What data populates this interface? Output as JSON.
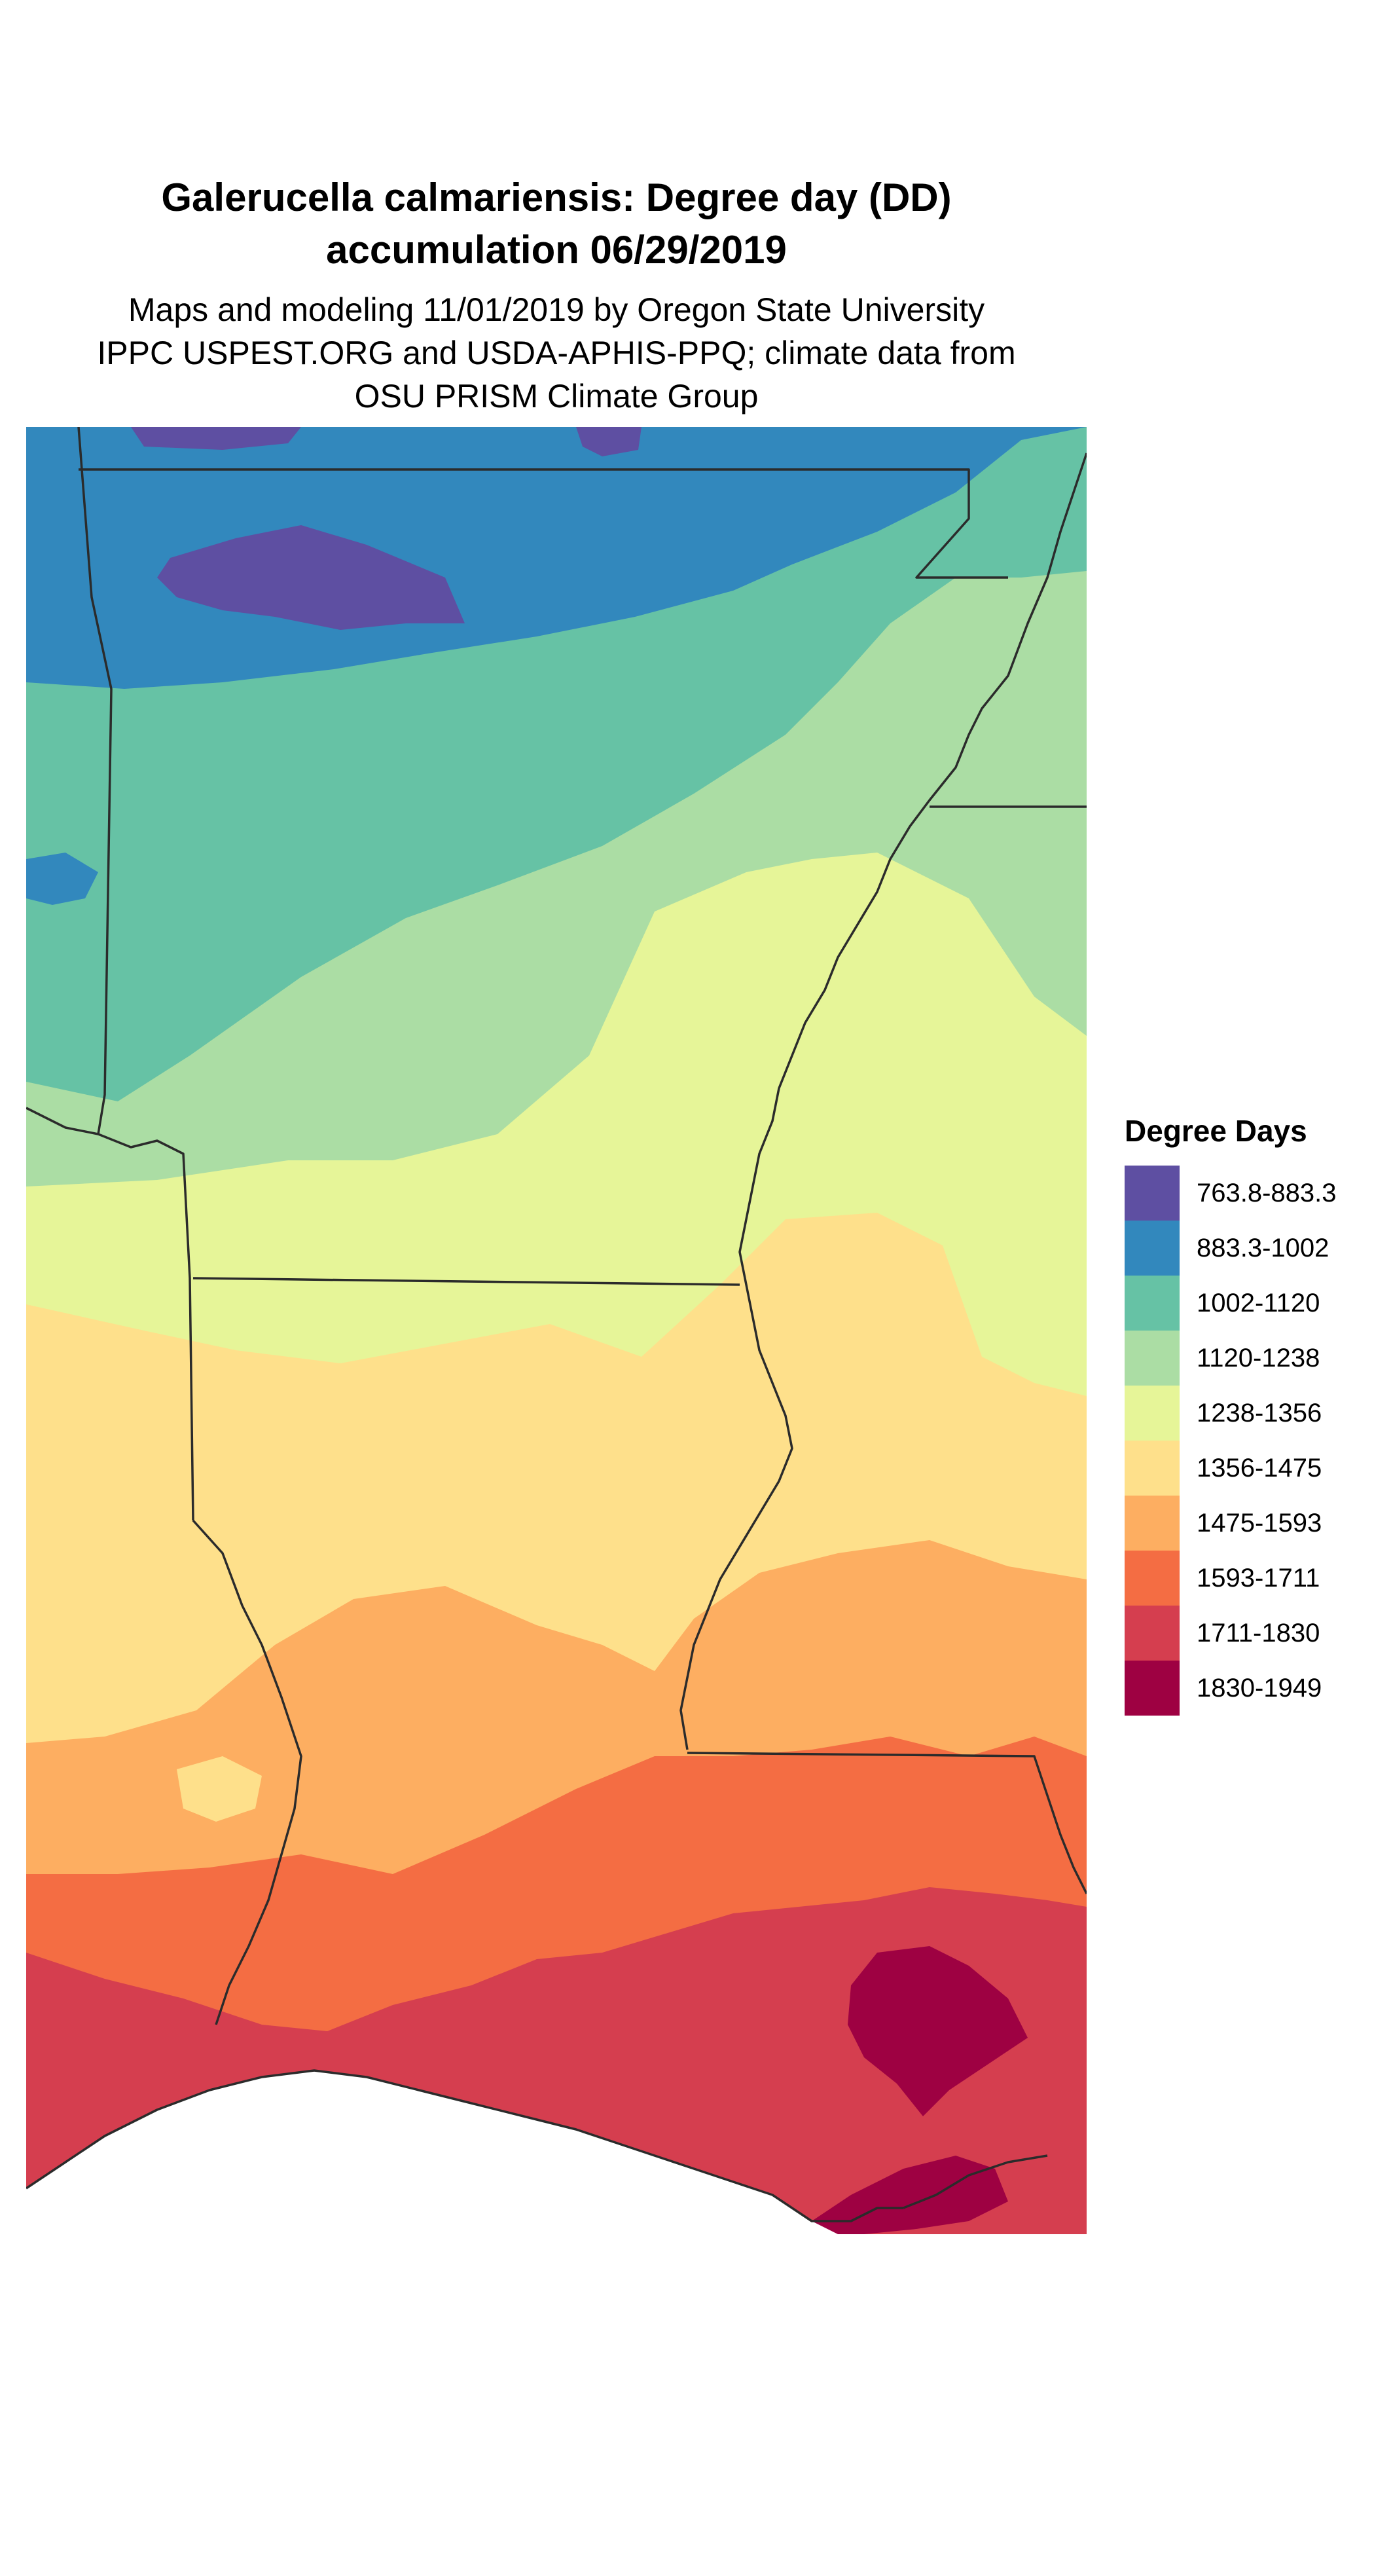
{
  "title": {
    "line1": "Galerucella calmariensis: Degree day (DD)",
    "line2": "accumulation 06/29/2019"
  },
  "subtitle": {
    "line1": "Maps and modeling 11/01/2019 by Oregon State University",
    "line2": "IPPC USPEST.ORG and USDA-APHIS-PPQ; climate data from",
    "line3": "OSU PRISM Climate Group"
  },
  "legend": {
    "title": "Degree Days",
    "items": [
      {
        "label": "763.8-883.3",
        "color": "#5e4fa2"
      },
      {
        "label": "883.3-1002",
        "color": "#3288bd"
      },
      {
        "label": "1002-1120",
        "color": "#66c2a5"
      },
      {
        "label": "1120-1238",
        "color": "#abdda4"
      },
      {
        "label": "1238-1356",
        "color": "#e6f598"
      },
      {
        "label": "1356-1475",
        "color": "#fee08b"
      },
      {
        "label": "1475-1593",
        "color": "#fdae61"
      },
      {
        "label": "1593-1711",
        "color": "#f46d43"
      },
      {
        "label": "1711-1830",
        "color": "#d53e4f"
      },
      {
        "label": "1830-1949",
        "color": "#9e0142"
      }
    ]
  }
}
